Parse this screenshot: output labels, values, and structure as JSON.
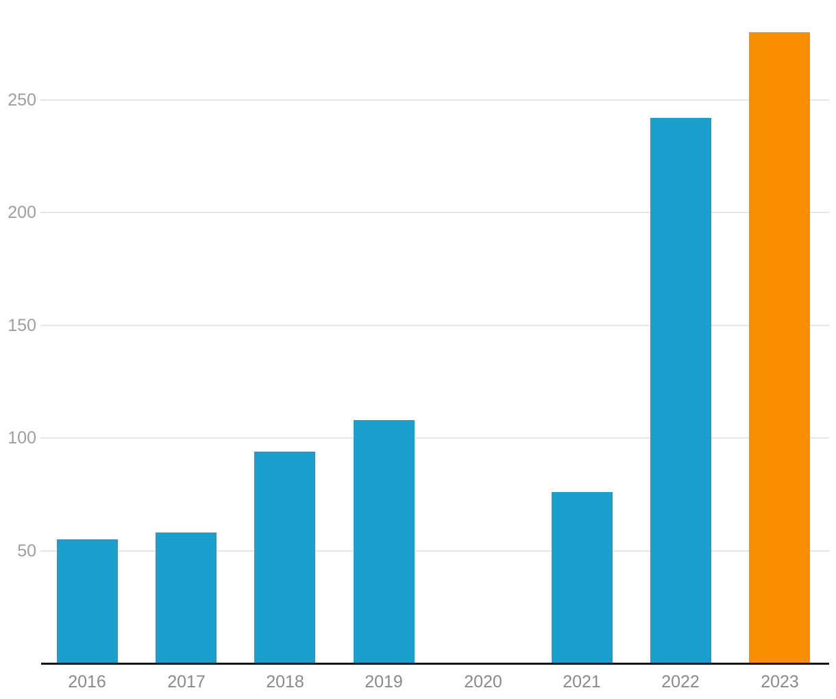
{
  "chart": {
    "bar_color": "#1BA0CE",
    "highlight_color": "#F98F00",
    "gridline_color": "#E7E7E7",
    "axis_line_color": "#141414",
    "y_label_color": "#9E9E9E",
    "x_label_color": "#8A8A8A",
    "background_color": "#FFFFFF"
  },
  "chart_data": {
    "type": "bar",
    "title": "",
    "xlabel": "",
    "ylabel": "",
    "categories": [
      "2016",
      "2017",
      "2018",
      "2019",
      "2020",
      "2021",
      "2022",
      "2023"
    ],
    "values": [
      55,
      58,
      94,
      108,
      0,
      76,
      242,
      280
    ],
    "highlight_index": 7,
    "yticks": [
      50,
      100,
      150,
      200,
      250
    ],
    "ylim": [
      0,
      294
    ],
    "grid": true,
    "legend": "none"
  }
}
